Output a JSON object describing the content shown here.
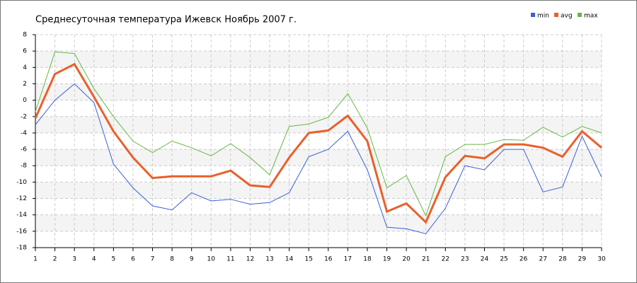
{
  "chart_data": {
    "type": "line",
    "title": "Среднесуточная температура Ижевск  Ноябрь 2007 г.",
    "x": [
      1,
      2,
      3,
      4,
      5,
      6,
      7,
      8,
      9,
      10,
      11,
      12,
      13,
      14,
      15,
      16,
      17,
      18,
      19,
      20,
      21,
      22,
      23,
      24,
      25,
      26,
      27,
      28,
      29,
      30
    ],
    "xlim": [
      1,
      30
    ],
    "xticks": [
      1,
      2,
      3,
      4,
      5,
      6,
      7,
      8,
      9,
      10,
      11,
      12,
      13,
      14,
      15,
      16,
      17,
      18,
      19,
      20,
      21,
      22,
      23,
      24,
      25,
      26,
      27,
      28,
      29,
      30
    ],
    "ylim": [
      -18,
      8
    ],
    "yticks": [
      -18,
      -16,
      -14,
      -12,
      -10,
      -8,
      -6,
      -4,
      -2,
      0,
      2,
      4,
      6,
      8
    ],
    "grid": true,
    "legend": "top-right",
    "series": [
      {
        "name": "min",
        "color": "#3a5fd9",
        "values": [
          -3.0,
          0.0,
          2.0,
          -0.3,
          -7.8,
          -10.7,
          -12.9,
          -13.4,
          -11.3,
          -12.3,
          -12.1,
          -12.7,
          -12.5,
          -11.3,
          -6.9,
          -6.0,
          -3.8,
          -8.5,
          -15.5,
          -15.7,
          -16.3,
          -13.2,
          -8.0,
          -8.5,
          -6.0,
          -6.0,
          -11.2,
          -10.6,
          -4.4,
          -9.4
        ]
      },
      {
        "name": "avg",
        "color": "#e8602c",
        "values": [
          -2.2,
          3.2,
          4.4,
          0.4,
          -3.8,
          -7.0,
          -9.5,
          -9.3,
          -9.3,
          -9.3,
          -8.6,
          -10.4,
          -10.6,
          -7.0,
          -4.0,
          -3.7,
          -1.9,
          -5.0,
          -13.6,
          -12.6,
          -14.9,
          -9.4,
          -6.8,
          -7.1,
          -5.4,
          -5.4,
          -5.8,
          -6.9,
          -3.8,
          -5.8
        ]
      },
      {
        "name": "max",
        "color": "#66b844",
        "values": [
          -1.4,
          5.9,
          5.7,
          1.4,
          -2.0,
          -5.0,
          -6.4,
          -5.0,
          -5.8,
          -6.8,
          -5.3,
          -7.0,
          -9.1,
          -3.2,
          -2.9,
          -2.1,
          0.8,
          -3.4,
          -10.7,
          -9.2,
          -14.1,
          -6.9,
          -5.4,
          -5.4,
          -4.8,
          -4.9,
          -3.3,
          -4.5,
          -3.2,
          -4.0
        ]
      }
    ]
  }
}
